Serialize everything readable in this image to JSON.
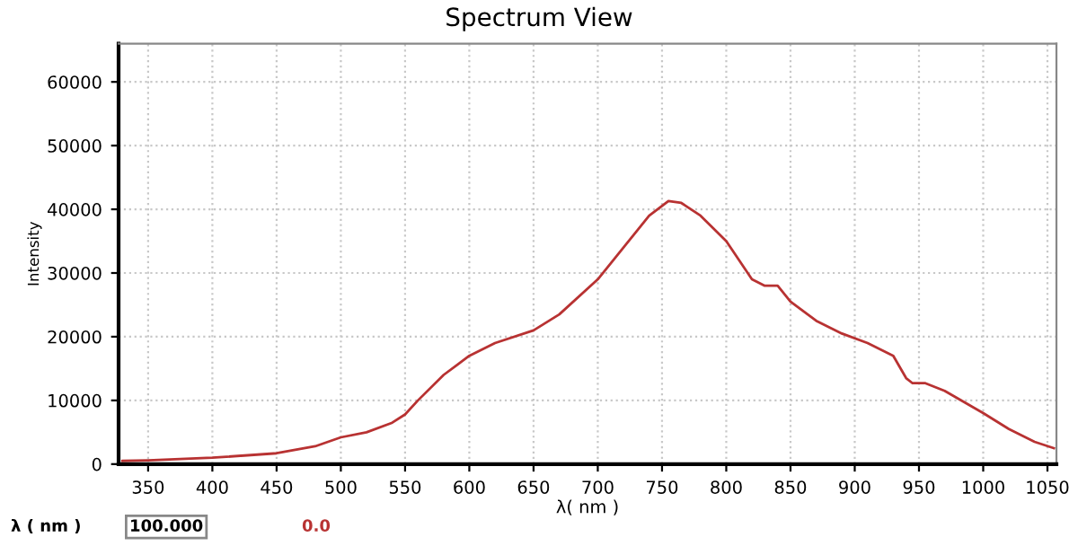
{
  "chart_data": {
    "type": "line",
    "title": "Spectrum View",
    "xlabel": "λ( nm )",
    "ylabel": "Intensity",
    "x": [
      330,
      350,
      400,
      450,
      480,
      500,
      520,
      540,
      550,
      560,
      580,
      600,
      620,
      650,
      670,
      700,
      720,
      740,
      755,
      765,
      780,
      800,
      820,
      830,
      840,
      850,
      870,
      890,
      910,
      930,
      940,
      945,
      955,
      970,
      1000,
      1020,
      1040,
      1055
    ],
    "series": [
      {
        "color": "#b83232",
        "values": [
          500,
          600,
          1000,
          1700,
          2800,
          4200,
          5000,
          6500,
          7800,
          10000,
          14000,
          17000,
          19000,
          21000,
          23500,
          29000,
          34000,
          39000,
          41300,
          41000,
          39000,
          35000,
          29000,
          28000,
          28000,
          25500,
          22500,
          20500,
          19000,
          17000,
          13500,
          12700,
          12700,
          11500,
          8000,
          5500,
          3500,
          2500
        ]
      }
    ],
    "xlim": [
      327,
      1057
    ],
    "ylim": [
      0,
      66000
    ],
    "xticks": [
      350,
      400,
      450,
      500,
      550,
      600,
      650,
      700,
      750,
      800,
      850,
      900,
      950,
      1000,
      1050
    ],
    "yticks": [
      0,
      10000,
      20000,
      30000,
      40000,
      50000,
      60000
    ],
    "grid": true,
    "line_style": "solid",
    "marker": "none",
    "annotations": [
      "λ ( nm )",
      "100.000",
      "0.0"
    ]
  }
}
